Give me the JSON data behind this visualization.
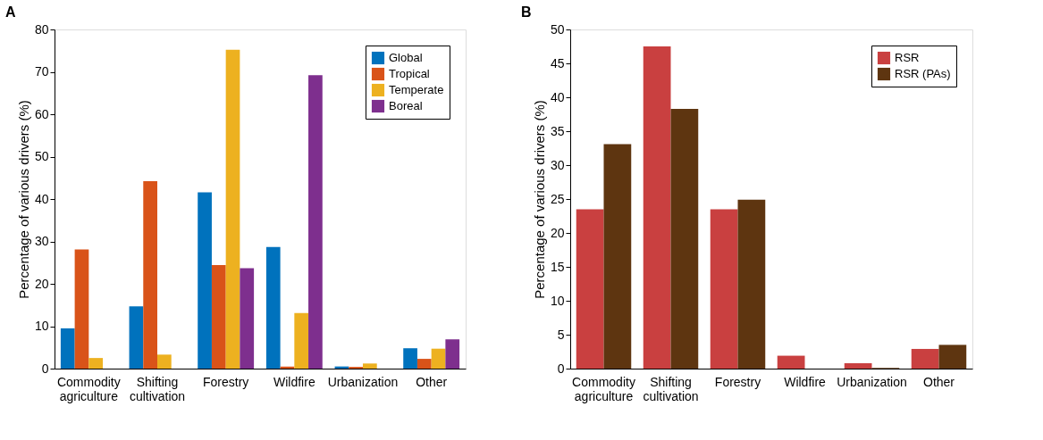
{
  "chart_data": [
    {
      "type": "bar",
      "title": "A",
      "ylabel": "Percentage of various drivers (%)",
      "categories": [
        "Commodity agriculture",
        "Shifting cultivation",
        "Forestry",
        "Wildfire",
        "Urbanization",
        "Other"
      ],
      "ylim": [
        0,
        80
      ],
      "yticks": [
        0,
        10,
        20,
        30,
        40,
        50,
        60,
        70,
        80
      ],
      "grid": false,
      "legend": "top right",
      "series": [
        {
          "name": "Global",
          "color": "#0072bd",
          "values": [
            9.5,
            14.7,
            41.6,
            28.7,
            0.5,
            4.8
          ]
        },
        {
          "name": "Tropical",
          "color": "#d95319",
          "values": [
            28.1,
            44.2,
            24.4,
            0.5,
            0.4,
            2.3
          ]
        },
        {
          "name": "Temperate",
          "color": "#edb120",
          "values": [
            2.5,
            3.3,
            75.2,
            13.1,
            1.2,
            4.7
          ]
        },
        {
          "name": "Boreal",
          "color": "#7e2f8e",
          "values": [
            0,
            0,
            23.7,
            69.2,
            0,
            6.9
          ]
        }
      ]
    },
    {
      "type": "bar",
      "title": "B",
      "ylabel": "Percentage of various drivers (%)",
      "categories": [
        "Commodity agriculture",
        "Shifting cultivation",
        "Forestry",
        "Wildfire",
        "Urbanization",
        "Other"
      ],
      "ylim": [
        0,
        50
      ],
      "yticks": [
        0,
        5,
        10,
        15,
        20,
        25,
        30,
        35,
        40,
        45,
        50
      ],
      "grid": false,
      "legend": "top right",
      "series": [
        {
          "name": "RSR",
          "color": "#c94040",
          "values": [
            23.5,
            47.5,
            23.5,
            1.9,
            0.8,
            2.9
          ]
        },
        {
          "name": "RSR (PAs)",
          "color": "#5e3510",
          "values": [
            33.1,
            38.3,
            24.9,
            0,
            0.1,
            3.5
          ]
        }
      ]
    }
  ]
}
